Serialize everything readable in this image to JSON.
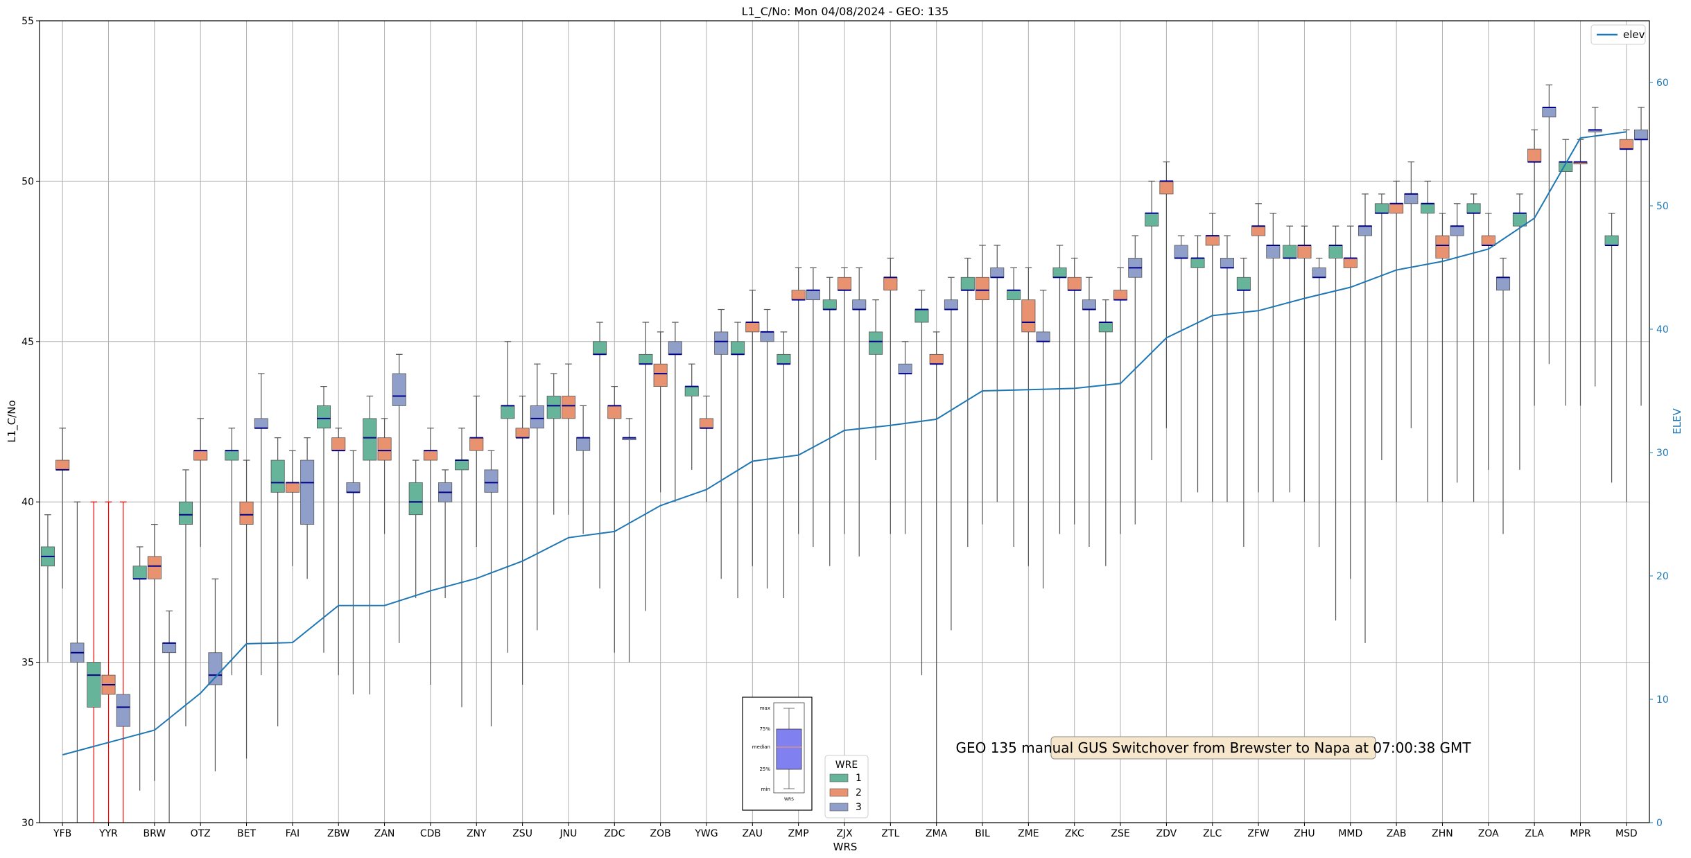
{
  "chart_data": {
    "type": "boxplot",
    "title": "L1_C/No: Mon 04/08/2024 - GEO: 135",
    "xlabel": "WRS",
    "ylabel": "L1_C/No",
    "y2label": "ELEV",
    "ylim": [
      30,
      55
    ],
    "y2lim": [
      0,
      65
    ],
    "yticks": [
      "30",
      "35",
      "40",
      "45",
      "50",
      "55"
    ],
    "y2ticks": [
      "0",
      "10",
      "20",
      "30",
      "40",
      "50",
      "60"
    ],
    "grid": true,
    "legend_line": "elev",
    "legend_wre": {
      "title": "WRE",
      "labels": [
        "1",
        "2",
        "3"
      ]
    },
    "colors": {
      "wre1": "#66b59a",
      "wre2": "#e8926f",
      "wre3": "#8f9fc9",
      "median": "#00008b",
      "elev": "#1f77b4",
      "red": "#ff0000",
      "whisker": "#555555",
      "grid": "#b0b0b0"
    },
    "annotation": "GEO 135 manual GUS Switchover from Brewster to Napa at 07:00:38 GMT",
    "inset": {
      "max": "max",
      "q75": "75%",
      "median": "median",
      "q25": "25%",
      "min": "min",
      "xlabel": "WRS"
    },
    "categories": [
      "YFB",
      "YYR",
      "BRW",
      "OTZ",
      "BET",
      "FAI",
      "ZBW",
      "ZAN",
      "CDB",
      "ZNY",
      "ZSU",
      "JNU",
      "ZDC",
      "ZOB",
      "YWG",
      "ZAU",
      "ZMP",
      "ZJX",
      "ZTL",
      "ZMA",
      "BIL",
      "ZME",
      "ZKC",
      "ZSE",
      "ZDV",
      "ZLC",
      "ZFW",
      "ZHU",
      "MMD",
      "ZAB",
      "ZHN",
      "ZOA",
      "ZLA",
      "MPR",
      "MSD"
    ],
    "elev": [
      5.5,
      6.5,
      7.5,
      10.5,
      14.5,
      14.6,
      17.6,
      17.6,
      18.8,
      19.8,
      21.2,
      23.1,
      23.6,
      25.7,
      27.0,
      29.3,
      29.8,
      31.8,
      32.2,
      32.7,
      35.0,
      35.1,
      35.2,
      35.6,
      39.3,
      41.1,
      41.5,
      42.5,
      43.4,
      44.8,
      45.5,
      46.5,
      49.0,
      55.5,
      56.0
    ],
    "boxes": [
      {
        "wrs": "YFB",
        "wre": 1,
        "min": 35.0,
        "q1": 38.0,
        "med": 38.3,
        "q3": 38.6,
        "max": 39.6
      },
      {
        "wrs": "YFB",
        "wre": 2,
        "min": 37.3,
        "q1": 41.0,
        "med": 41.0,
        "q3": 41.3,
        "max": 42.3
      },
      {
        "wrs": "YFB",
        "wre": 3,
        "min": 30.0,
        "q1": 35.0,
        "med": 35.3,
        "q3": 35.6,
        "max": 40.0
      },
      {
        "wrs": "YYR",
        "wre": 1,
        "min": 30.0,
        "q1": 33.6,
        "med": 34.6,
        "q3": 35.0,
        "max": 40.0,
        "red": true
      },
      {
        "wrs": "YYR",
        "wre": 2,
        "min": 30.0,
        "q1": 34.0,
        "med": 34.3,
        "q3": 34.6,
        "max": 40.0,
        "red": true
      },
      {
        "wrs": "YYR",
        "wre": 3,
        "min": 30.0,
        "q1": 33.0,
        "med": 33.6,
        "q3": 34.0,
        "max": 40.0,
        "red": true
      },
      {
        "wrs": "BRW",
        "wre": 1,
        "min": 31.0,
        "q1": 37.6,
        "med": 37.6,
        "q3": 38.0,
        "max": 38.6
      },
      {
        "wrs": "BRW",
        "wre": 2,
        "min": 31.3,
        "q1": 37.6,
        "med": 38.0,
        "q3": 38.3,
        "max": 39.3
      },
      {
        "wrs": "BRW",
        "wre": 3,
        "min": 30.0,
        "q1": 35.3,
        "med": 35.6,
        "q3": 35.6,
        "max": 36.6
      },
      {
        "wrs": "OTZ",
        "wre": 1,
        "min": 33.0,
        "q1": 39.3,
        "med": 39.6,
        "q3": 40.0,
        "max": 41.0
      },
      {
        "wrs": "OTZ",
        "wre": 2,
        "min": 38.6,
        "q1": 41.3,
        "med": 41.6,
        "q3": 41.6,
        "max": 42.6
      },
      {
        "wrs": "OTZ",
        "wre": 3,
        "min": 31.6,
        "q1": 34.3,
        "med": 34.6,
        "q3": 35.3,
        "max": 37.6
      },
      {
        "wrs": "BET",
        "wre": 1,
        "min": 34.6,
        "q1": 41.3,
        "med": 41.6,
        "q3": 41.6,
        "max": 42.3
      },
      {
        "wrs": "BET",
        "wre": 2,
        "min": 32.0,
        "q1": 39.3,
        "med": 39.6,
        "q3": 40.0,
        "max": 41.3
      },
      {
        "wrs": "BET",
        "wre": 3,
        "min": 34.6,
        "q1": 42.3,
        "med": 42.3,
        "q3": 42.6,
        "max": 44.0
      },
      {
        "wrs": "FAI",
        "wre": 1,
        "min": 33.0,
        "q1": 40.3,
        "med": 40.6,
        "q3": 41.3,
        "max": 42.0
      },
      {
        "wrs": "FAI",
        "wre": 2,
        "min": 38.0,
        "q1": 40.3,
        "med": 40.6,
        "q3": 40.6,
        "max": 41.6
      },
      {
        "wrs": "FAI",
        "wre": 3,
        "min": 37.6,
        "q1": 39.3,
        "med": 40.6,
        "q3": 41.3,
        "max": 42.0
      },
      {
        "wrs": "ZBW",
        "wre": 1,
        "min": 35.3,
        "q1": 42.3,
        "med": 42.6,
        "q3": 43.0,
        "max": 43.6
      },
      {
        "wrs": "ZBW",
        "wre": 2,
        "min": 34.6,
        "q1": 41.6,
        "med": 41.6,
        "q3": 42.0,
        "max": 42.3
      },
      {
        "wrs": "ZBW",
        "wre": 3,
        "min": 34.0,
        "q1": 40.3,
        "med": 40.3,
        "q3": 40.6,
        "max": 41.6
      },
      {
        "wrs": "ZAN",
        "wre": 1,
        "min": 34.0,
        "q1": 41.3,
        "med": 42.0,
        "q3": 42.6,
        "max": 43.3
      },
      {
        "wrs": "ZAN",
        "wre": 2,
        "min": 39.0,
        "q1": 41.3,
        "med": 41.6,
        "q3": 42.0,
        "max": 42.6
      },
      {
        "wrs": "ZAN",
        "wre": 3,
        "min": 35.6,
        "q1": 43.0,
        "med": 43.3,
        "q3": 44.0,
        "max": 44.6
      },
      {
        "wrs": "CDB",
        "wre": 1,
        "min": 37.0,
        "q1": 39.6,
        "med": 40.0,
        "q3": 40.6,
        "max": 41.3
      },
      {
        "wrs": "CDB",
        "wre": 2,
        "min": 34.3,
        "q1": 41.3,
        "med": 41.6,
        "q3": 41.6,
        "max": 42.3
      },
      {
        "wrs": "CDB",
        "wre": 3,
        "min": 37.0,
        "q1": 40.0,
        "med": 40.3,
        "q3": 40.6,
        "max": 41.0
      },
      {
        "wrs": "ZNY",
        "wre": 1,
        "min": 33.6,
        "q1": 41.0,
        "med": 41.3,
        "q3": 41.3,
        "max": 42.3
      },
      {
        "wrs": "ZNY",
        "wre": 2,
        "min": 38.6,
        "q1": 41.6,
        "med": 42.0,
        "q3": 42.0,
        "max": 43.3
      },
      {
        "wrs": "ZNY",
        "wre": 3,
        "min": 33.0,
        "q1": 40.3,
        "med": 40.6,
        "q3": 41.0,
        "max": 41.6
      },
      {
        "wrs": "ZSU",
        "wre": 1,
        "min": 35.3,
        "q1": 42.6,
        "med": 43.0,
        "q3": 43.0,
        "max": 45.0
      },
      {
        "wrs": "ZSU",
        "wre": 2,
        "min": 34.3,
        "q1": 42.0,
        "med": 42.0,
        "q3": 42.3,
        "max": 43.3
      },
      {
        "wrs": "ZSU",
        "wre": 3,
        "min": 36.0,
        "q1": 42.3,
        "med": 42.6,
        "q3": 43.0,
        "max": 44.3
      },
      {
        "wrs": "JNU",
        "wre": 1,
        "min": 39.6,
        "q1": 42.6,
        "med": 43.0,
        "q3": 43.3,
        "max": 44.0
      },
      {
        "wrs": "JNU",
        "wre": 2,
        "min": 39.6,
        "q1": 42.6,
        "med": 43.0,
        "q3": 43.3,
        "max": 44.3
      },
      {
        "wrs": "JNU",
        "wre": 3,
        "min": 39.0,
        "q1": 41.6,
        "med": 42.0,
        "q3": 42.0,
        "max": 43.0
      },
      {
        "wrs": "ZDC",
        "wre": 1,
        "min": 37.3,
        "q1": 44.6,
        "med": 44.6,
        "q3": 45.0,
        "max": 45.6
      },
      {
        "wrs": "ZDC",
        "wre": 2,
        "min": 35.3,
        "q1": 42.6,
        "med": 43.0,
        "q3": 43.0,
        "max": 43.6
      },
      {
        "wrs": "ZDC",
        "wre": 3,
        "min": 35.0,
        "q1": 42.0,
        "med": 42.0,
        "q3": 42.0,
        "max": 42.6
      },
      {
        "wrs": "ZOB",
        "wre": 1,
        "min": 36.6,
        "q1": 44.3,
        "med": 44.3,
        "q3": 44.6,
        "max": 45.6
      },
      {
        "wrs": "ZOB",
        "wre": 2,
        "min": 40.3,
        "q1": 43.6,
        "med": 44.0,
        "q3": 44.3,
        "max": 45.3
      },
      {
        "wrs": "ZOB",
        "wre": 3,
        "min": 40.0,
        "q1": 44.6,
        "med": 44.6,
        "q3": 45.0,
        "max": 45.6
      },
      {
        "wrs": "YWG",
        "wre": 1,
        "min": 41.0,
        "q1": 43.3,
        "med": 43.6,
        "q3": 43.6,
        "max": 44.3
      },
      {
        "wrs": "YWG",
        "wre": 2,
        "min": 40.0,
        "q1": 42.3,
        "med": 42.3,
        "q3": 42.6,
        "max": 43.3
      },
      {
        "wrs": "YWG",
        "wre": 3,
        "min": 37.6,
        "q1": 44.6,
        "med": 45.0,
        "q3": 45.3,
        "max": 46.0
      },
      {
        "wrs": "ZAU",
        "wre": 1,
        "min": 37.0,
        "q1": 44.6,
        "med": 44.6,
        "q3": 45.0,
        "max": 45.6
      },
      {
        "wrs": "ZAU",
        "wre": 2,
        "min": 38.0,
        "q1": 45.3,
        "med": 45.6,
        "q3": 45.6,
        "max": 46.6
      },
      {
        "wrs": "ZAU",
        "wre": 3,
        "min": 37.3,
        "q1": 45.0,
        "med": 45.3,
        "q3": 45.3,
        "max": 46.0
      },
      {
        "wrs": "ZMP",
        "wre": 1,
        "min": 37.0,
        "q1": 44.3,
        "med": 44.3,
        "q3": 44.6,
        "max": 45.3
      },
      {
        "wrs": "ZMP",
        "wre": 2,
        "min": 39.0,
        "q1": 46.3,
        "med": 46.3,
        "q3": 46.6,
        "max": 47.3
      },
      {
        "wrs": "ZMP",
        "wre": 3,
        "min": 38.6,
        "q1": 46.3,
        "med": 46.6,
        "q3": 46.6,
        "max": 47.3
      },
      {
        "wrs": "ZJX",
        "wre": 1,
        "min": 38.0,
        "q1": 46.0,
        "med": 46.0,
        "q3": 46.3,
        "max": 47.0
      },
      {
        "wrs": "ZJX",
        "wre": 2,
        "min": 39.0,
        "q1": 46.6,
        "med": 46.6,
        "q3": 47.0,
        "max": 47.3
      },
      {
        "wrs": "ZJX",
        "wre": 3,
        "min": 38.3,
        "q1": 46.0,
        "med": 46.0,
        "q3": 46.3,
        "max": 47.3
      },
      {
        "wrs": "ZTL",
        "wre": 1,
        "min": 41.3,
        "q1": 44.6,
        "med": 45.0,
        "q3": 45.3,
        "max": 46.3
      },
      {
        "wrs": "ZTL",
        "wre": 2,
        "min": 39.0,
        "q1": 46.6,
        "med": 47.0,
        "q3": 47.0,
        "max": 47.6
      },
      {
        "wrs": "ZTL",
        "wre": 3,
        "min": 39.0,
        "q1": 44.0,
        "med": 44.0,
        "q3": 44.3,
        "max": 45.0
      },
      {
        "wrs": "ZMA",
        "wre": 1,
        "min": 34.6,
        "q1": 45.6,
        "med": 46.0,
        "q3": 46.0,
        "max": 46.6
      },
      {
        "wrs": "ZMA",
        "wre": 2,
        "min": 30.0,
        "q1": 44.3,
        "med": 44.3,
        "q3": 44.6,
        "max": 45.3
      },
      {
        "wrs": "ZMA",
        "wre": 3,
        "min": 36.0,
        "q1": 46.0,
        "med": 46.0,
        "q3": 46.3,
        "max": 47.0
      },
      {
        "wrs": "BIL",
        "wre": 1,
        "min": 38.6,
        "q1": 46.6,
        "med": 46.6,
        "q3": 47.0,
        "max": 47.6
      },
      {
        "wrs": "BIL",
        "wre": 2,
        "min": 39.3,
        "q1": 46.3,
        "med": 46.6,
        "q3": 47.0,
        "max": 48.0
      },
      {
        "wrs": "BIL",
        "wre": 3,
        "min": 40.0,
        "q1": 47.0,
        "med": 47.0,
        "q3": 47.3,
        "max": 48.0
      },
      {
        "wrs": "ZME",
        "wre": 1,
        "min": 38.6,
        "q1": 46.3,
        "med": 46.6,
        "q3": 46.6,
        "max": 47.3
      },
      {
        "wrs": "ZME",
        "wre": 2,
        "min": 38.0,
        "q1": 45.3,
        "med": 45.6,
        "q3": 46.3,
        "max": 47.3
      },
      {
        "wrs": "ZME",
        "wre": 3,
        "min": 37.3,
        "q1": 45.0,
        "med": 45.0,
        "q3": 45.3,
        "max": 46.6
      },
      {
        "wrs": "ZKC",
        "wre": 1,
        "min": 39.0,
        "q1": 47.0,
        "med": 47.0,
        "q3": 47.3,
        "max": 48.0
      },
      {
        "wrs": "ZKC",
        "wre": 2,
        "min": 39.3,
        "q1": 46.6,
        "med": 46.6,
        "q3": 47.0,
        "max": 47.6
      },
      {
        "wrs": "ZKC",
        "wre": 3,
        "min": 38.6,
        "q1": 46.0,
        "med": 46.0,
        "q3": 46.3,
        "max": 47.0
      },
      {
        "wrs": "ZSE",
        "wre": 1,
        "min": 38.0,
        "q1": 45.3,
        "med": 45.6,
        "q3": 45.6,
        "max": 46.3
      },
      {
        "wrs": "ZSE",
        "wre": 2,
        "min": 39.0,
        "q1": 46.3,
        "med": 46.3,
        "q3": 46.6,
        "max": 47.3
      },
      {
        "wrs": "ZSE",
        "wre": 3,
        "min": 39.3,
        "q1": 47.0,
        "med": 47.3,
        "q3": 47.6,
        "max": 48.3
      },
      {
        "wrs": "ZDV",
        "wre": 1,
        "min": 41.3,
        "q1": 48.6,
        "med": 49.0,
        "q3": 49.0,
        "max": 50.0
      },
      {
        "wrs": "ZDV",
        "wre": 2,
        "min": 42.3,
        "q1": 49.6,
        "med": 50.0,
        "q3": 50.0,
        "max": 50.6
      },
      {
        "wrs": "ZDV",
        "wre": 3,
        "min": 40.0,
        "q1": 47.6,
        "med": 47.6,
        "q3": 48.0,
        "max": 48.3
      },
      {
        "wrs": "ZLC",
        "wre": 1,
        "min": 40.3,
        "q1": 47.3,
        "med": 47.6,
        "q3": 47.6,
        "max": 48.3
      },
      {
        "wrs": "ZLC",
        "wre": 2,
        "min": 40.0,
        "q1": 48.0,
        "med": 48.3,
        "q3": 48.3,
        "max": 49.0
      },
      {
        "wrs": "ZLC",
        "wre": 3,
        "min": 40.0,
        "q1": 47.3,
        "med": 47.3,
        "q3": 47.6,
        "max": 48.3
      },
      {
        "wrs": "ZFW",
        "wre": 1,
        "min": 38.6,
        "q1": 46.6,
        "med": 46.6,
        "q3": 47.0,
        "max": 47.6
      },
      {
        "wrs": "ZFW",
        "wre": 2,
        "min": 40.3,
        "q1": 48.3,
        "med": 48.6,
        "q3": 48.6,
        "max": 49.3
      },
      {
        "wrs": "ZFW",
        "wre": 3,
        "min": 40.0,
        "q1": 47.6,
        "med": 48.0,
        "q3": 48.0,
        "max": 49.0
      },
      {
        "wrs": "ZHU",
        "wre": 1,
        "min": 40.3,
        "q1": 47.6,
        "med": 47.6,
        "q3": 48.0,
        "max": 48.6
      },
      {
        "wrs": "ZHU",
        "wre": 2,
        "min": 40.0,
        "q1": 47.6,
        "med": 48.0,
        "q3": 48.0,
        "max": 48.6
      },
      {
        "wrs": "ZHU",
        "wre": 3,
        "min": 38.6,
        "q1": 47.0,
        "med": 47.0,
        "q3": 47.3,
        "max": 47.6
      },
      {
        "wrs": "MMD",
        "wre": 1,
        "min": 36.3,
        "q1": 47.6,
        "med": 48.0,
        "q3": 48.0,
        "max": 48.6
      },
      {
        "wrs": "MMD",
        "wre": 2,
        "min": 37.6,
        "q1": 47.3,
        "med": 47.6,
        "q3": 47.6,
        "max": 48.6
      },
      {
        "wrs": "MMD",
        "wre": 3,
        "min": 35.6,
        "q1": 48.3,
        "med": 48.6,
        "q3": 48.6,
        "max": 49.6
      },
      {
        "wrs": "ZAB",
        "wre": 1,
        "min": 41.3,
        "q1": 49.0,
        "med": 49.0,
        "q3": 49.3,
        "max": 49.6
      },
      {
        "wrs": "ZAB",
        "wre": 2,
        "min": 40.0,
        "q1": 49.0,
        "med": 49.3,
        "q3": 49.3,
        "max": 50.0
      },
      {
        "wrs": "ZAB",
        "wre": 3,
        "min": 42.3,
        "q1": 49.3,
        "med": 49.6,
        "q3": 49.6,
        "max": 50.6
      },
      {
        "wrs": "ZHN",
        "wre": 1,
        "min": 40.0,
        "q1": 49.0,
        "med": 49.3,
        "q3": 49.3,
        "max": 50.0
      },
      {
        "wrs": "ZHN",
        "wre": 2,
        "min": 40.0,
        "q1": 47.6,
        "med": 48.0,
        "q3": 48.3,
        "max": 49.0
      },
      {
        "wrs": "ZHN",
        "wre": 3,
        "min": 40.6,
        "q1": 48.3,
        "med": 48.6,
        "q3": 48.6,
        "max": 49.3
      },
      {
        "wrs": "ZOA",
        "wre": 1,
        "min": 40.0,
        "q1": 49.0,
        "med": 49.0,
        "q3": 49.3,
        "max": 49.6
      },
      {
        "wrs": "ZOA",
        "wre": 2,
        "min": 41.0,
        "q1": 48.0,
        "med": 48.0,
        "q3": 48.3,
        "max": 49.0
      },
      {
        "wrs": "ZOA",
        "wre": 3,
        "min": 39.0,
        "q1": 46.6,
        "med": 47.0,
        "q3": 47.0,
        "max": 47.6
      },
      {
        "wrs": "ZLA",
        "wre": 1,
        "min": 41.0,
        "q1": 48.6,
        "med": 49.0,
        "q3": 49.0,
        "max": 49.6
      },
      {
        "wrs": "ZLA",
        "wre": 2,
        "min": 43.0,
        "q1": 50.6,
        "med": 50.6,
        "q3": 51.0,
        "max": 51.6
      },
      {
        "wrs": "ZLA",
        "wre": 3,
        "min": 44.3,
        "q1": 52.0,
        "med": 52.3,
        "q3": 52.3,
        "max": 53.0
      },
      {
        "wrs": "MPR",
        "wre": 1,
        "min": 43.0,
        "q1": 50.3,
        "med": 50.6,
        "q3": 50.6,
        "max": 51.3
      },
      {
        "wrs": "MPR",
        "wre": 2,
        "min": 43.0,
        "q1": 50.6,
        "med": 50.6,
        "q3": 50.6,
        "max": 51.3
      },
      {
        "wrs": "MPR",
        "wre": 3,
        "min": 43.6,
        "q1": 51.6,
        "med": 51.6,
        "q3": 51.6,
        "max": 52.3
      },
      {
        "wrs": "MSD",
        "wre": 1,
        "min": 40.6,
        "q1": 48.0,
        "med": 48.0,
        "q3": 48.3,
        "max": 49.0
      },
      {
        "wrs": "MSD",
        "wre": 2,
        "min": 40.0,
        "q1": 51.0,
        "med": 51.0,
        "q3": 51.3,
        "max": 51.6
      },
      {
        "wrs": "MSD",
        "wre": 3,
        "min": 43.0,
        "q1": 51.3,
        "med": 51.3,
        "q3": 51.6,
        "max": 52.3
      }
    ]
  }
}
